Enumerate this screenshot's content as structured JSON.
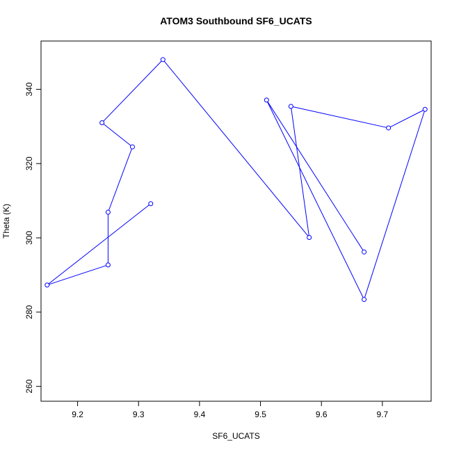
{
  "chart_data": {
    "type": "line",
    "title": "ATOM3 Southbound SF6_UCATS",
    "xlabel": "SF6_UCATS",
    "ylabel": "Theta (K)",
    "xlim": [
      9.14,
      9.78
    ],
    "ylim": [
      256,
      353
    ],
    "xticks": [
      9.2,
      9.3,
      9.4,
      9.5,
      9.6,
      9.7
    ],
    "xtick_labels": [
      "9.2",
      "9.3",
      "9.4",
      "9.5",
      "9.6",
      "9.7"
    ],
    "yticks": [
      260,
      280,
      300,
      320,
      340
    ],
    "ytick_labels": [
      "260",
      "280",
      "300",
      "320",
      "340"
    ],
    "grid": false,
    "series": [
      {
        "color": "#0000ff",
        "marker": "open-circle",
        "x": [
          9.32,
          9.15,
          9.25,
          9.25,
          9.29,
          9.24,
          9.34,
          9.58,
          9.55,
          9.71,
          9.77,
          9.67,
          9.51,
          9.67
        ],
        "y": [
          309.2,
          287.3,
          292.7,
          306.9,
          324.5,
          331.0,
          348.0,
          300.1,
          335.4,
          329.6,
          334.6,
          283.4,
          337.1,
          296.2
        ]
      }
    ]
  }
}
